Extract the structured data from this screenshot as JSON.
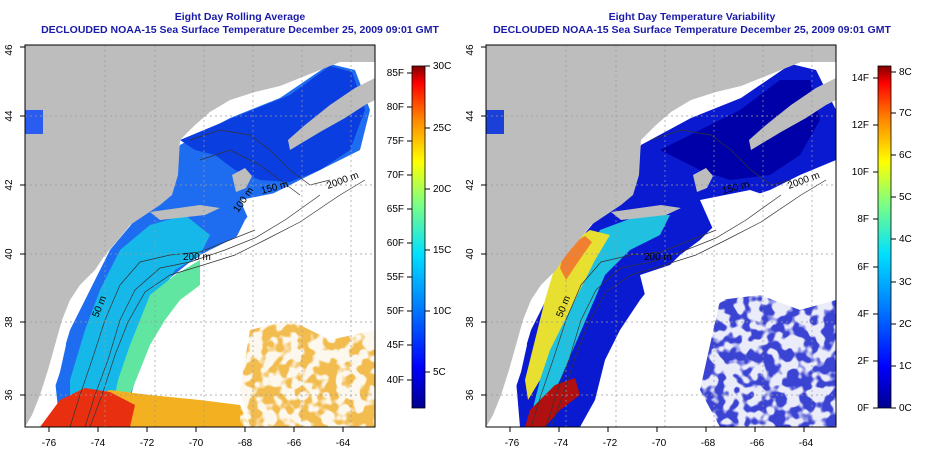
{
  "colors": {
    "land": "#bdbdbd",
    "water_white": "#ffffff",
    "title": "#1a1aa8",
    "grid": "#9a9a9a"
  },
  "left_panel": {
    "title_line1": "Eight Day Rolling Average",
    "title_line2": "DECLOUDED NOAA-15 Sea Surface Temperature December 25, 2009 09:01 GMT",
    "lon_ticks": [
      "-76",
      "-74",
      "-72",
      "-70",
      "-68",
      "-66",
      "-64"
    ],
    "lat_ticks": [
      "36",
      "38",
      "40",
      "42",
      "44",
      "46"
    ],
    "contour_labels": [
      "50 m",
      "200 m",
      "150 m",
      "2000 m",
      "100 m"
    ],
    "colorbar_f": [
      "85F",
      "80F",
      "75F",
      "70F",
      "65F",
      "60F",
      "55F",
      "50F",
      "45F",
      "40F"
    ],
    "colorbar_c": [
      "30C",
      "25C",
      "20C",
      "15C",
      "10C",
      "5C"
    ]
  },
  "right_panel": {
    "title_line1": "Eight Day Temperature Variability",
    "title_line2": "DECLOUDED NOAA-15 Sea Surface Temperature December 25, 2009 09:01 GMT",
    "lon_ticks": [
      "-76",
      "-74",
      "-72",
      "-70",
      "-68",
      "-66",
      "-64"
    ],
    "lat_ticks": [
      "36",
      "38",
      "40",
      "42",
      "44",
      "46"
    ],
    "contour_labels": [
      "50 m",
      "200 m",
      "150 m",
      "2000 m"
    ],
    "colorbar_f": [
      "14F",
      "12F",
      "10F",
      "8F",
      "6F",
      "4F",
      "2F",
      "0F"
    ],
    "colorbar_c": [
      "8C",
      "7C",
      "6C",
      "5C",
      "4C",
      "3C",
      "2C",
      "1C",
      "0C"
    ]
  }
}
